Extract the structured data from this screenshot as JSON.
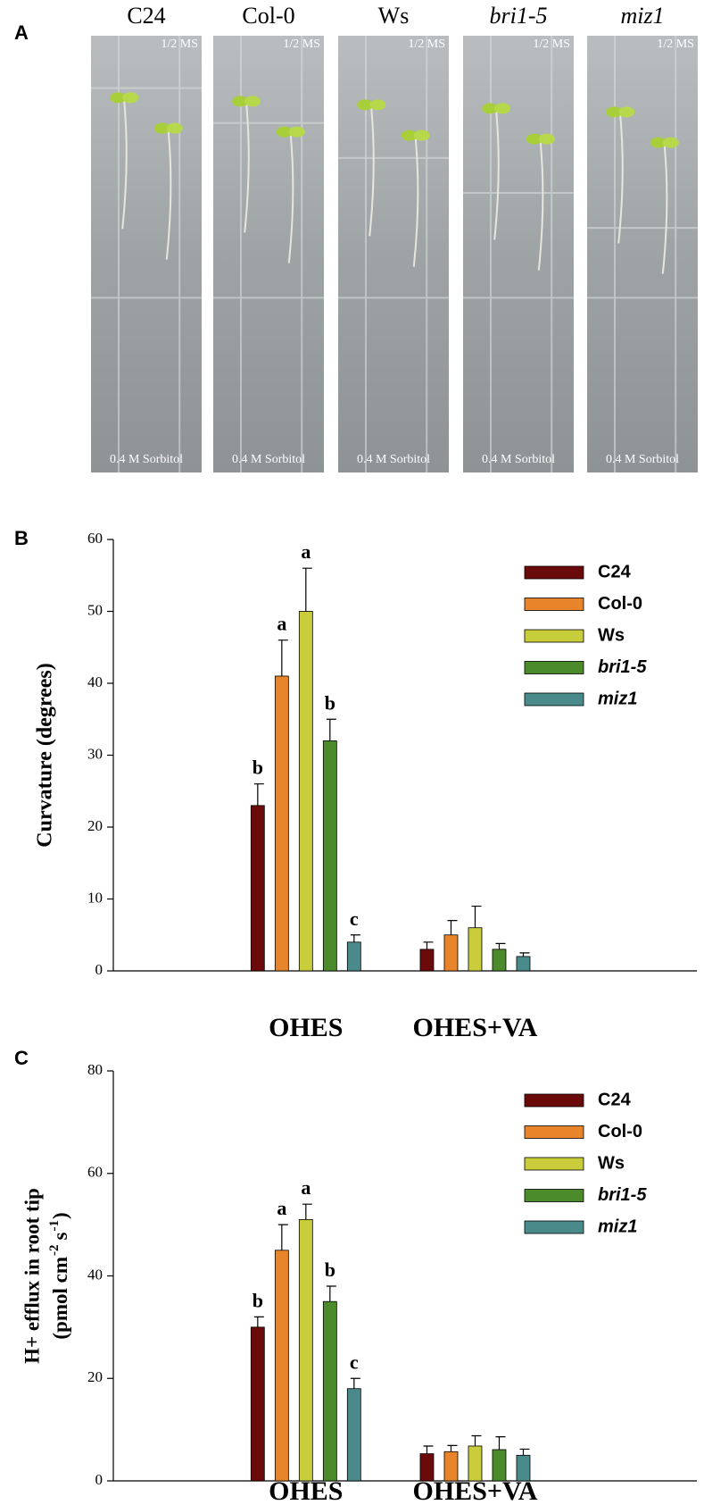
{
  "photo_panel": {
    "label": "A",
    "columns": [
      {
        "title": "C24",
        "top": "1/2 MS",
        "bottom": "0.4 M Sorbitol"
      },
      {
        "title": "Col-0",
        "top": "1/2 MS",
        "bottom": "0.4 M Sorbitol"
      },
      {
        "title": "Ws",
        "top": "1/2 MS",
        "bottom": "0.4 M Sorbitol"
      },
      {
        "title": "bri1-5",
        "top": "1/2 MS",
        "bottom": "0.4 M Sorbitol"
      },
      {
        "title": "miz1",
        "top": "1/2 MS",
        "bottom": "0.4 M Sorbitol"
      }
    ]
  },
  "chart_data": [
    {
      "type": "bar",
      "label": "B",
      "ylabel": [
        "Curvature (degrees)"
      ],
      "categories": [
        "OHES",
        "OHES+VA"
      ],
      "ylim": [
        0,
        60
      ],
      "yticks": [
        0,
        10,
        20,
        30,
        40,
        50,
        60
      ],
      "series": [
        {
          "name": "C24",
          "color": "#6b0a0a",
          "values": [
            23,
            3
          ],
          "errors": [
            3,
            1
          ],
          "annotations": [
            "b",
            null
          ]
        },
        {
          "name": "Col-0",
          "color": "#e8852a",
          "values": [
            41,
            5
          ],
          "errors": [
            5,
            2
          ],
          "annotations": [
            "a",
            null
          ]
        },
        {
          "name": "Ws",
          "color": "#c9cd3c",
          "values": [
            50,
            6
          ],
          "errors": [
            6,
            3
          ],
          "annotations": [
            "a",
            null
          ]
        },
        {
          "name": "bri1-5",
          "color": "#4b8b2b",
          "values": [
            32,
            3
          ],
          "errors": [
            3,
            0.8
          ],
          "annotations": [
            "b",
            null
          ]
        },
        {
          "name": "miz1",
          "color": "#4a8a8a",
          "values": [
            4,
            2
          ],
          "errors": [
            1,
            0.5
          ],
          "annotations": [
            "c",
            null
          ]
        }
      ]
    },
    {
      "type": "bar",
      "label": "C",
      "ylabel": [
        "H+ efflux in root tip",
        "(pmol cm",
        "-2",
        "s",
        "-1",
        ")"
      ],
      "categories": [
        "OHES",
        "OHES+VA"
      ],
      "ylim": [
        0,
        80
      ],
      "yticks": [
        0,
        20,
        40,
        60,
        80
      ],
      "series": [
        {
          "name": "C24",
          "color": "#6b0a0a",
          "values": [
            30,
            5.3
          ],
          "errors": [
            2,
            1.5
          ],
          "annotations": [
            "b",
            null
          ]
        },
        {
          "name": "Col-0",
          "color": "#e8852a",
          "values": [
            45,
            5.7
          ],
          "errors": [
            5,
            1.2
          ],
          "annotations": [
            "a",
            null
          ]
        },
        {
          "name": "Ws",
          "color": "#c9cd3c",
          "values": [
            51,
            6.8
          ],
          "errors": [
            3,
            2
          ],
          "annotations": [
            "a",
            null
          ]
        },
        {
          "name": "bri1-5",
          "color": "#4b8b2b",
          "values": [
            35,
            6.1
          ],
          "errors": [
            3,
            2.5
          ],
          "annotations": [
            "b",
            null
          ]
        },
        {
          "name": "miz1",
          "color": "#4a8a8a",
          "values": [
            18,
            5.0
          ],
          "errors": [
            2,
            1.2
          ],
          "annotations": [
            "c",
            null
          ]
        }
      ]
    }
  ]
}
